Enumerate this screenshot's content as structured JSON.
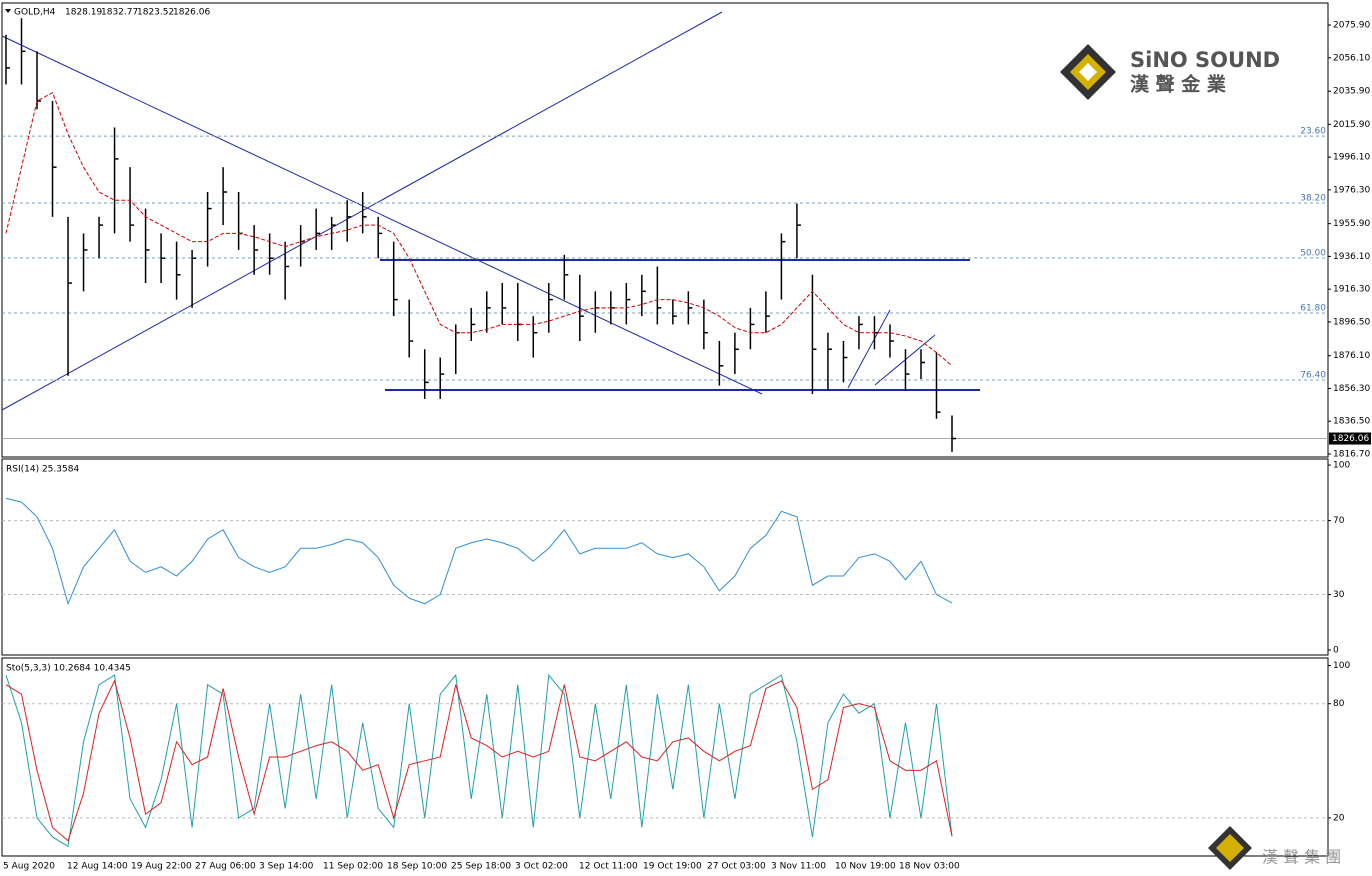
{
  "chart_data": [
    {
      "type": "ohlc",
      "title": "GOLD,H4",
      "header_values": [
        1828.19,
        1832.77,
        1823.52,
        1826.06
      ],
      "ylim": [
        1814.9,
        2089.2
      ],
      "yticks": [
        {
          "value": 2075.9,
          "label": "2075.90"
        },
        {
          "value": 2056.1,
          "label": "2056.10"
        },
        {
          "value": 2035.9,
          "label": "2035.90"
        },
        {
          "value": 2015.9,
          "label": "2015.90"
        },
        {
          "value": 1996.1,
          "label": "1996.10"
        },
        {
          "value": 1976.3,
          "label": "1976.30"
        },
        {
          "value": 1955.9,
          "label": "1955.90"
        },
        {
          "value": 1936.1,
          "label": "1936.10"
        },
        {
          "value": 1916.3,
          "label": "1916.30"
        },
        {
          "value": 1896.5,
          "label": "1896.50"
        },
        {
          "value": 1876.1,
          "label": "1876.10"
        },
        {
          "value": 1856.3,
          "label": "1856.30"
        },
        {
          "value": 1836.5,
          "label": "1836.50"
        },
        {
          "value": 1816.7,
          "label": "1816.70"
        }
      ],
      "color": "#000000",
      "high": [
        2070,
        2080,
        2060,
        2030,
        1960,
        1950,
        1960,
        2014,
        1990,
        1965,
        1950,
        1945,
        1940,
        1975,
        1990,
        1975,
        1955,
        1950,
        1945,
        1955,
        1965,
        1960,
        1970,
        1975,
        1960,
        1945,
        1910,
        1880,
        1875,
        1895,
        1905,
        1915,
        1920,
        1920,
        1900,
        1920,
        1937,
        1925,
        1915,
        1915,
        1920,
        1925,
        1930,
        1910,
        1915,
        1910,
        1885,
        1890,
        1905,
        1915,
        1950,
        1968,
        1925,
        1890,
        1885,
        1900,
        1900,
        1895,
        1880,
        1880,
        1878,
        1840
      ],
      "low": [
        2040,
        2040,
        2025,
        1960,
        1864,
        1915,
        1935,
        1950,
        1945,
        1920,
        1920,
        1910,
        1905,
        1930,
        1955,
        1940,
        1925,
        1925,
        1910,
        1930,
        1940,
        1940,
        1945,
        1950,
        1935,
        1900,
        1875,
        1850,
        1850,
        1865,
        1885,
        1890,
        1895,
        1885,
        1875,
        1890,
        1910,
        1885,
        1890,
        1895,
        1895,
        1900,
        1895,
        1895,
        1895,
        1880,
        1858,
        1865,
        1880,
        1890,
        1910,
        1935,
        1853,
        1855,
        1860,
        1880,
        1880,
        1875,
        1855,
        1862,
        1838,
        1818
      ],
      "close": [
        2050,
        2060,
        2030,
        1990,
        1920,
        1940,
        1955,
        1995,
        1955,
        1940,
        1935,
        1925,
        1935,
        1965,
        1975,
        1950,
        1940,
        1935,
        1930,
        1945,
        1950,
        1955,
        1960,
        1960,
        1950,
        1910,
        1885,
        1860,
        1865,
        1890,
        1895,
        1905,
        1905,
        1895,
        1890,
        1910,
        1925,
        1900,
        1905,
        1905,
        1910,
        1915,
        1905,
        1900,
        1905,
        1890,
        1870,
        1880,
        1895,
        1900,
        1945,
        1955,
        1880,
        1880,
        1875,
        1895,
        1890,
        1885,
        1865,
        1872,
        1842,
        1826.06
      ],
      "ma": {
        "color": "#cc0000",
        "values": [
          1950,
          1990,
          2030,
          2035,
          2010,
          1990,
          1975,
          1970,
          1970,
          1960,
          1955,
          1950,
          1945,
          1945,
          1950,
          1950,
          1948,
          1945,
          1942,
          1945,
          1948,
          1950,
          1952,
          1955,
          1955,
          1950,
          1935,
          1915,
          1895,
          1890,
          1890,
          1892,
          1895,
          1895,
          1895,
          1897,
          1900,
          1903,
          1905,
          1905,
          1905,
          1907,
          1910,
          1910,
          1908,
          1905,
          1900,
          1893,
          1890,
          1890,
          1895,
          1905,
          1915,
          1905,
          1895,
          1890,
          1890,
          1890,
          1888,
          1885,
          1878,
          1870
        ]
      },
      "annotations": [
        {
          "label": "23.60",
          "y": 2008.8
        },
        {
          "label": "38.20",
          "y": 1968.4
        },
        {
          "label": "50.00",
          "y": 1935.1
        },
        {
          "label": "61.80",
          "y": 1901.9
        },
        {
          "label": "76.40",
          "y": 1861.4
        }
      ],
      "x_labels": [
        "5 Aug 2020",
        "12 Aug 14:00",
        "19 Aug 22:00",
        "27 Aug 06:00",
        "3 Sep 14:00",
        "11 Sep 02:00",
        "18 Sep 10:00",
        "25 Sep 18:00",
        "3 Oct 02:00",
        "12 Oct 11:00",
        "19 Oct 19:00",
        "27 Oct 03:00",
        "3 Nov 11:00",
        "10 Nov 19:00",
        "18 Nov 03:00"
      ]
    },
    {
      "type": "line",
      "title": "RSI(14) 25.3584",
      "ylim": [
        -2.7,
        103.3
      ],
      "yticks": [
        100,
        70,
        30,
        0
      ],
      "grid_at": [
        70,
        30
      ],
      "series": [
        {
          "color": "#2f8fd8",
          "values": [
            82,
            80,
            72,
            55,
            25,
            45,
            55,
            65,
            48,
            42,
            45,
            40,
            48,
            60,
            65,
            50,
            45,
            42,
            45,
            55,
            55,
            57,
            60,
            58,
            50,
            35,
            28,
            25,
            30,
            55,
            58,
            60,
            58,
            55,
            48,
            55,
            65,
            52,
            55,
            55,
            55,
            58,
            52,
            50,
            52,
            45,
            32,
            40,
            55,
            62,
            75,
            72,
            35,
            40,
            40,
            50,
            52,
            48,
            38,
            48,
            30,
            25.3584
          ]
        }
      ]
    },
    {
      "type": "line",
      "title": "Sto(5,3,3) 10.2684 10.4345",
      "ylim": [
        0,
        104
      ],
      "yticks": [
        100,
        80,
        20
      ],
      "grid_at": [
        80,
        20
      ],
      "series": [
        {
          "color": "#20a0a8",
          "values": [
            95,
            70,
            20,
            10,
            5,
            60,
            90,
            95,
            30,
            15,
            40,
            80,
            15,
            90,
            85,
            20,
            25,
            80,
            25,
            85,
            30,
            90,
            20,
            70,
            25,
            15,
            80,
            20,
            85,
            95,
            30,
            85,
            20,
            90,
            15,
            95,
            85,
            20,
            80,
            30,
            90,
            15,
            85,
            35,
            90,
            20,
            80,
            30,
            85,
            90,
            95,
            60,
            10,
            70,
            85,
            75,
            80,
            20,
            70,
            20,
            80,
            10.2684
          ]
        },
        {
          "color": "#dd2020",
          "values": [
            90,
            85,
            45,
            15,
            8,
            33,
            75,
            92,
            62,
            22,
            28,
            60,
            48,
            52,
            88,
            52,
            22,
            52,
            52,
            55,
            58,
            60,
            55,
            45,
            48,
            20,
            48,
            50,
            52,
            90,
            62,
            58,
            52,
            55,
            52,
            55,
            90,
            52,
            50,
            55,
            60,
            52,
            50,
            60,
            62,
            55,
            50,
            55,
            58,
            88,
            92,
            78,
            35,
            40,
            78,
            80,
            78,
            50,
            45,
            45,
            50,
            10.4345
          ]
        }
      ]
    }
  ],
  "logo": {
    "brand": "SiNO SOUND",
    "chinese": "漢 聲 金 業",
    "footer": "漢 聲 集 團"
  }
}
